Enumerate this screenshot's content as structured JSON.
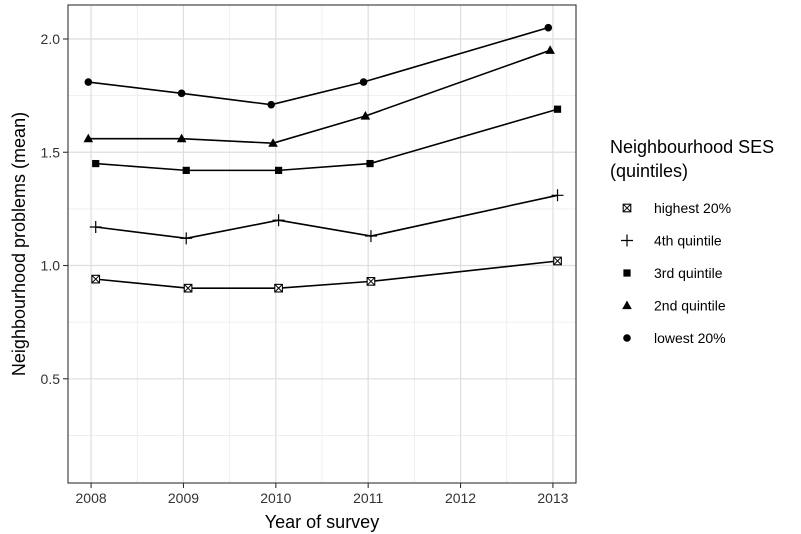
{
  "chart_data": {
    "type": "line",
    "title": "",
    "xlabel": "Year of survey",
    "ylabel": "Neighbourhood problems (mean)",
    "xlim": [
      2007.75,
      2013.25
    ],
    "ylim": [
      0.04,
      2.15
    ],
    "x_ticks": [
      2008,
      2009,
      2010,
      2011,
      2012,
      2013
    ],
    "x_tick_labels": [
      "2008",
      "2009",
      "2010",
      "2011",
      "2012",
      "2013"
    ],
    "y_ticks": [
      0.5,
      1.0,
      1.5,
      2.0
    ],
    "y_tick_labels": [
      "0.5",
      "1.0",
      "1.5",
      "2.0"
    ],
    "grid": true,
    "legend_position": "right",
    "legend_title_lines": [
      "Neighbourhood SES",
      "(quintiles)"
    ],
    "series": [
      {
        "name": "highest 20%",
        "marker": "box-x",
        "points": [
          [
            2008.05,
            0.94
          ],
          [
            2009.05,
            0.9
          ],
          [
            2010.03,
            0.9
          ],
          [
            2011.03,
            0.93
          ],
          [
            2013.05,
            1.02
          ]
        ]
      },
      {
        "name": "4th quintile",
        "marker": "plus",
        "points": [
          [
            2008.05,
            1.17
          ],
          [
            2009.03,
            1.12
          ],
          [
            2010.03,
            1.2
          ],
          [
            2011.03,
            1.13
          ],
          [
            2013.05,
            1.31
          ]
        ]
      },
      {
        "name": "3rd quintile",
        "marker": "square",
        "points": [
          [
            2008.05,
            1.45
          ],
          [
            2009.03,
            1.42
          ],
          [
            2010.03,
            1.42
          ],
          [
            2011.02,
            1.45
          ],
          [
            2013.05,
            1.69
          ]
        ]
      },
      {
        "name": "2nd quintile",
        "marker": "triangle",
        "points": [
          [
            2007.97,
            1.56
          ],
          [
            2008.98,
            1.56
          ],
          [
            2009.97,
            1.54
          ],
          [
            2010.97,
            1.66
          ],
          [
            2012.97,
            1.95
          ]
        ]
      },
      {
        "name": "lowest 20%",
        "marker": "circle",
        "points": [
          [
            2007.97,
            1.81
          ],
          [
            2008.98,
            1.76
          ],
          [
            2009.95,
            1.71
          ],
          [
            2010.95,
            1.81
          ],
          [
            2012.95,
            2.05
          ]
        ]
      }
    ]
  }
}
